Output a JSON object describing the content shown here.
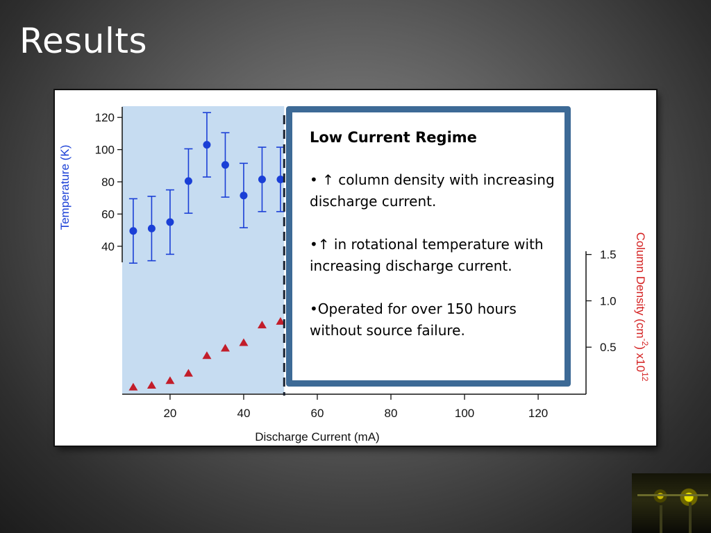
{
  "slide": {
    "title": "Results"
  },
  "callout": {
    "heading": "Low Current Regime",
    "bullets": [
      "• ↑ column density with increasing discharge current.",
      "•↑ in rotational temperature with increasing discharge current.",
      "•Operated for over 150 hours without source failure."
    ]
  },
  "chart_data": {
    "type": "scatter",
    "title": "",
    "xlabel": "Discharge Current (mA)",
    "x_ticks": [
      20,
      40,
      60,
      80,
      100,
      120
    ],
    "xlim": [
      7,
      133
    ],
    "highlight": {
      "x_range": [
        7,
        51
      ],
      "color": "#c6dcf1",
      "boundary_x": 51
    },
    "y_left": {
      "label": "Temperature (K)",
      "color": "#1a3fd6",
      "ticks": [
        40,
        60,
        80,
        100,
        120
      ],
      "range": [
        30,
        130
      ]
    },
    "y_right": {
      "label_main": "Column Density (cm",
      "label_sup1": "-2",
      "label_mid": ") x10",
      "label_sup2": "12",
      "color": "#d42020",
      "ticks": [
        "0.5",
        "1.0",
        "1.5"
      ],
      "tick_values": [
        0.5,
        1.0,
        1.5
      ],
      "range": [
        0,
        3.1
      ]
    },
    "series": [
      {
        "name": "Temperature",
        "axis": "left",
        "marker": "circle",
        "color": "#1a3fd6",
        "x": [
          10,
          15,
          20,
          25,
          30,
          35,
          40,
          45,
          50
        ],
        "y": [
          49.5,
          51,
          55,
          80.5,
          103,
          90.5,
          71.5,
          81.5,
          81.5
        ],
        "err": [
          20,
          20,
          20,
          20,
          20,
          20,
          20,
          20,
          20
        ]
      },
      {
        "name": "Column Density",
        "axis": "right",
        "marker": "triangle",
        "color": "#c21d2a",
        "x": [
          10,
          15,
          20,
          25,
          30,
          35,
          40,
          45,
          50
        ],
        "y": [
          0.07,
          0.09,
          0.14,
          0.22,
          0.41,
          0.49,
          0.55,
          0.74,
          0.78
        ]
      }
    ]
  }
}
